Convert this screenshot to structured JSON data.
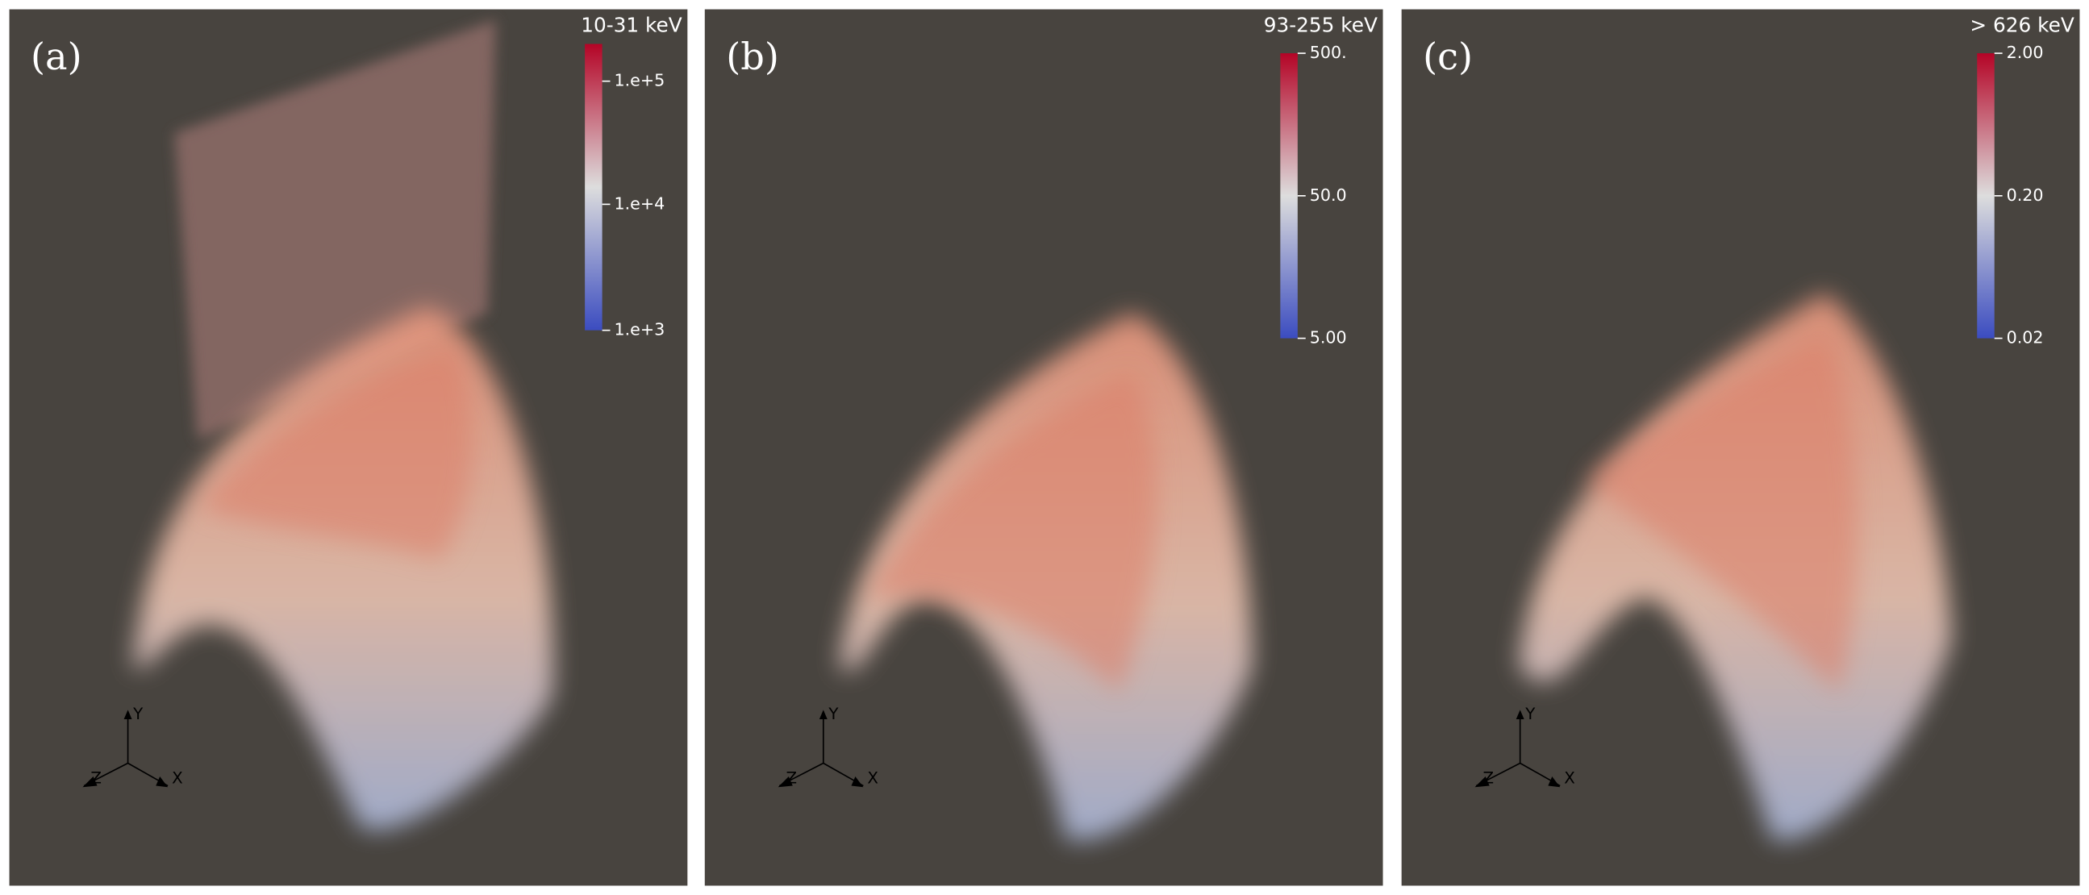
{
  "panels": [
    {
      "label": "(a)",
      "colorbar": {
        "title": "10-31 keV",
        "ticks": [
          "1.e+5",
          "1.e+4",
          "1.e+3"
        ]
      }
    },
    {
      "label": "(b)",
      "colorbar": {
        "title": "93-255 keV",
        "ticks": [
          "500.",
          "50.0",
          "5.00"
        ]
      }
    },
    {
      "label": "(c)",
      "colorbar": {
        "title": "> 626 keV",
        "ticks": [
          "2.00",
          "0.20",
          "0.02"
        ]
      }
    }
  ],
  "axes": [
    "X",
    "Y",
    "Z"
  ]
}
